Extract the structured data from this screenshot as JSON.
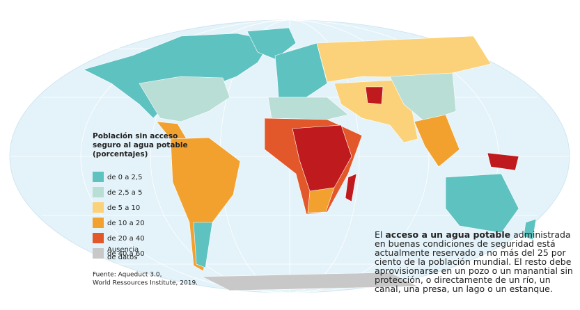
{
  "legend": {
    "title": [
      "Población sin acceso",
      "seguro al agua potable",
      "(porcentajes)"
    ],
    "items": [
      {
        "label": "de 0 a 2,5",
        "color": "#5ec2c0"
      },
      {
        "label": "de 2,5 a 5",
        "color": "#b9ded6"
      },
      {
        "label": "de 5 a 10",
        "color": "#fbd27a"
      },
      {
        "label": "de 10 a 20",
        "color": "#f2a12e"
      },
      {
        "label": "de 20 a 40",
        "color": "#e2582a"
      },
      {
        "label": "de 40 a 60",
        "color": "#bf1a1d"
      }
    ],
    "nodata": {
      "label": [
        "Ausencia",
        "de datos"
      ],
      "color": "#c8c8c8"
    }
  },
  "source": [
    "Fuente: Aqueduct 3.0,",
    "World Ressources Institute, 2019."
  ],
  "note": {
    "before": "El",
    "bold": "acceso a un agua potable",
    "after": "administrada en buenas condiciones de seguridad está actualmente reservado a no más del 25 por ciento de la población mundial. El resto debe aprovisionarse en un pozo o un manantial sin protección, o directamente de un río, un canal, una presa, un lago o un estanque."
  }
}
